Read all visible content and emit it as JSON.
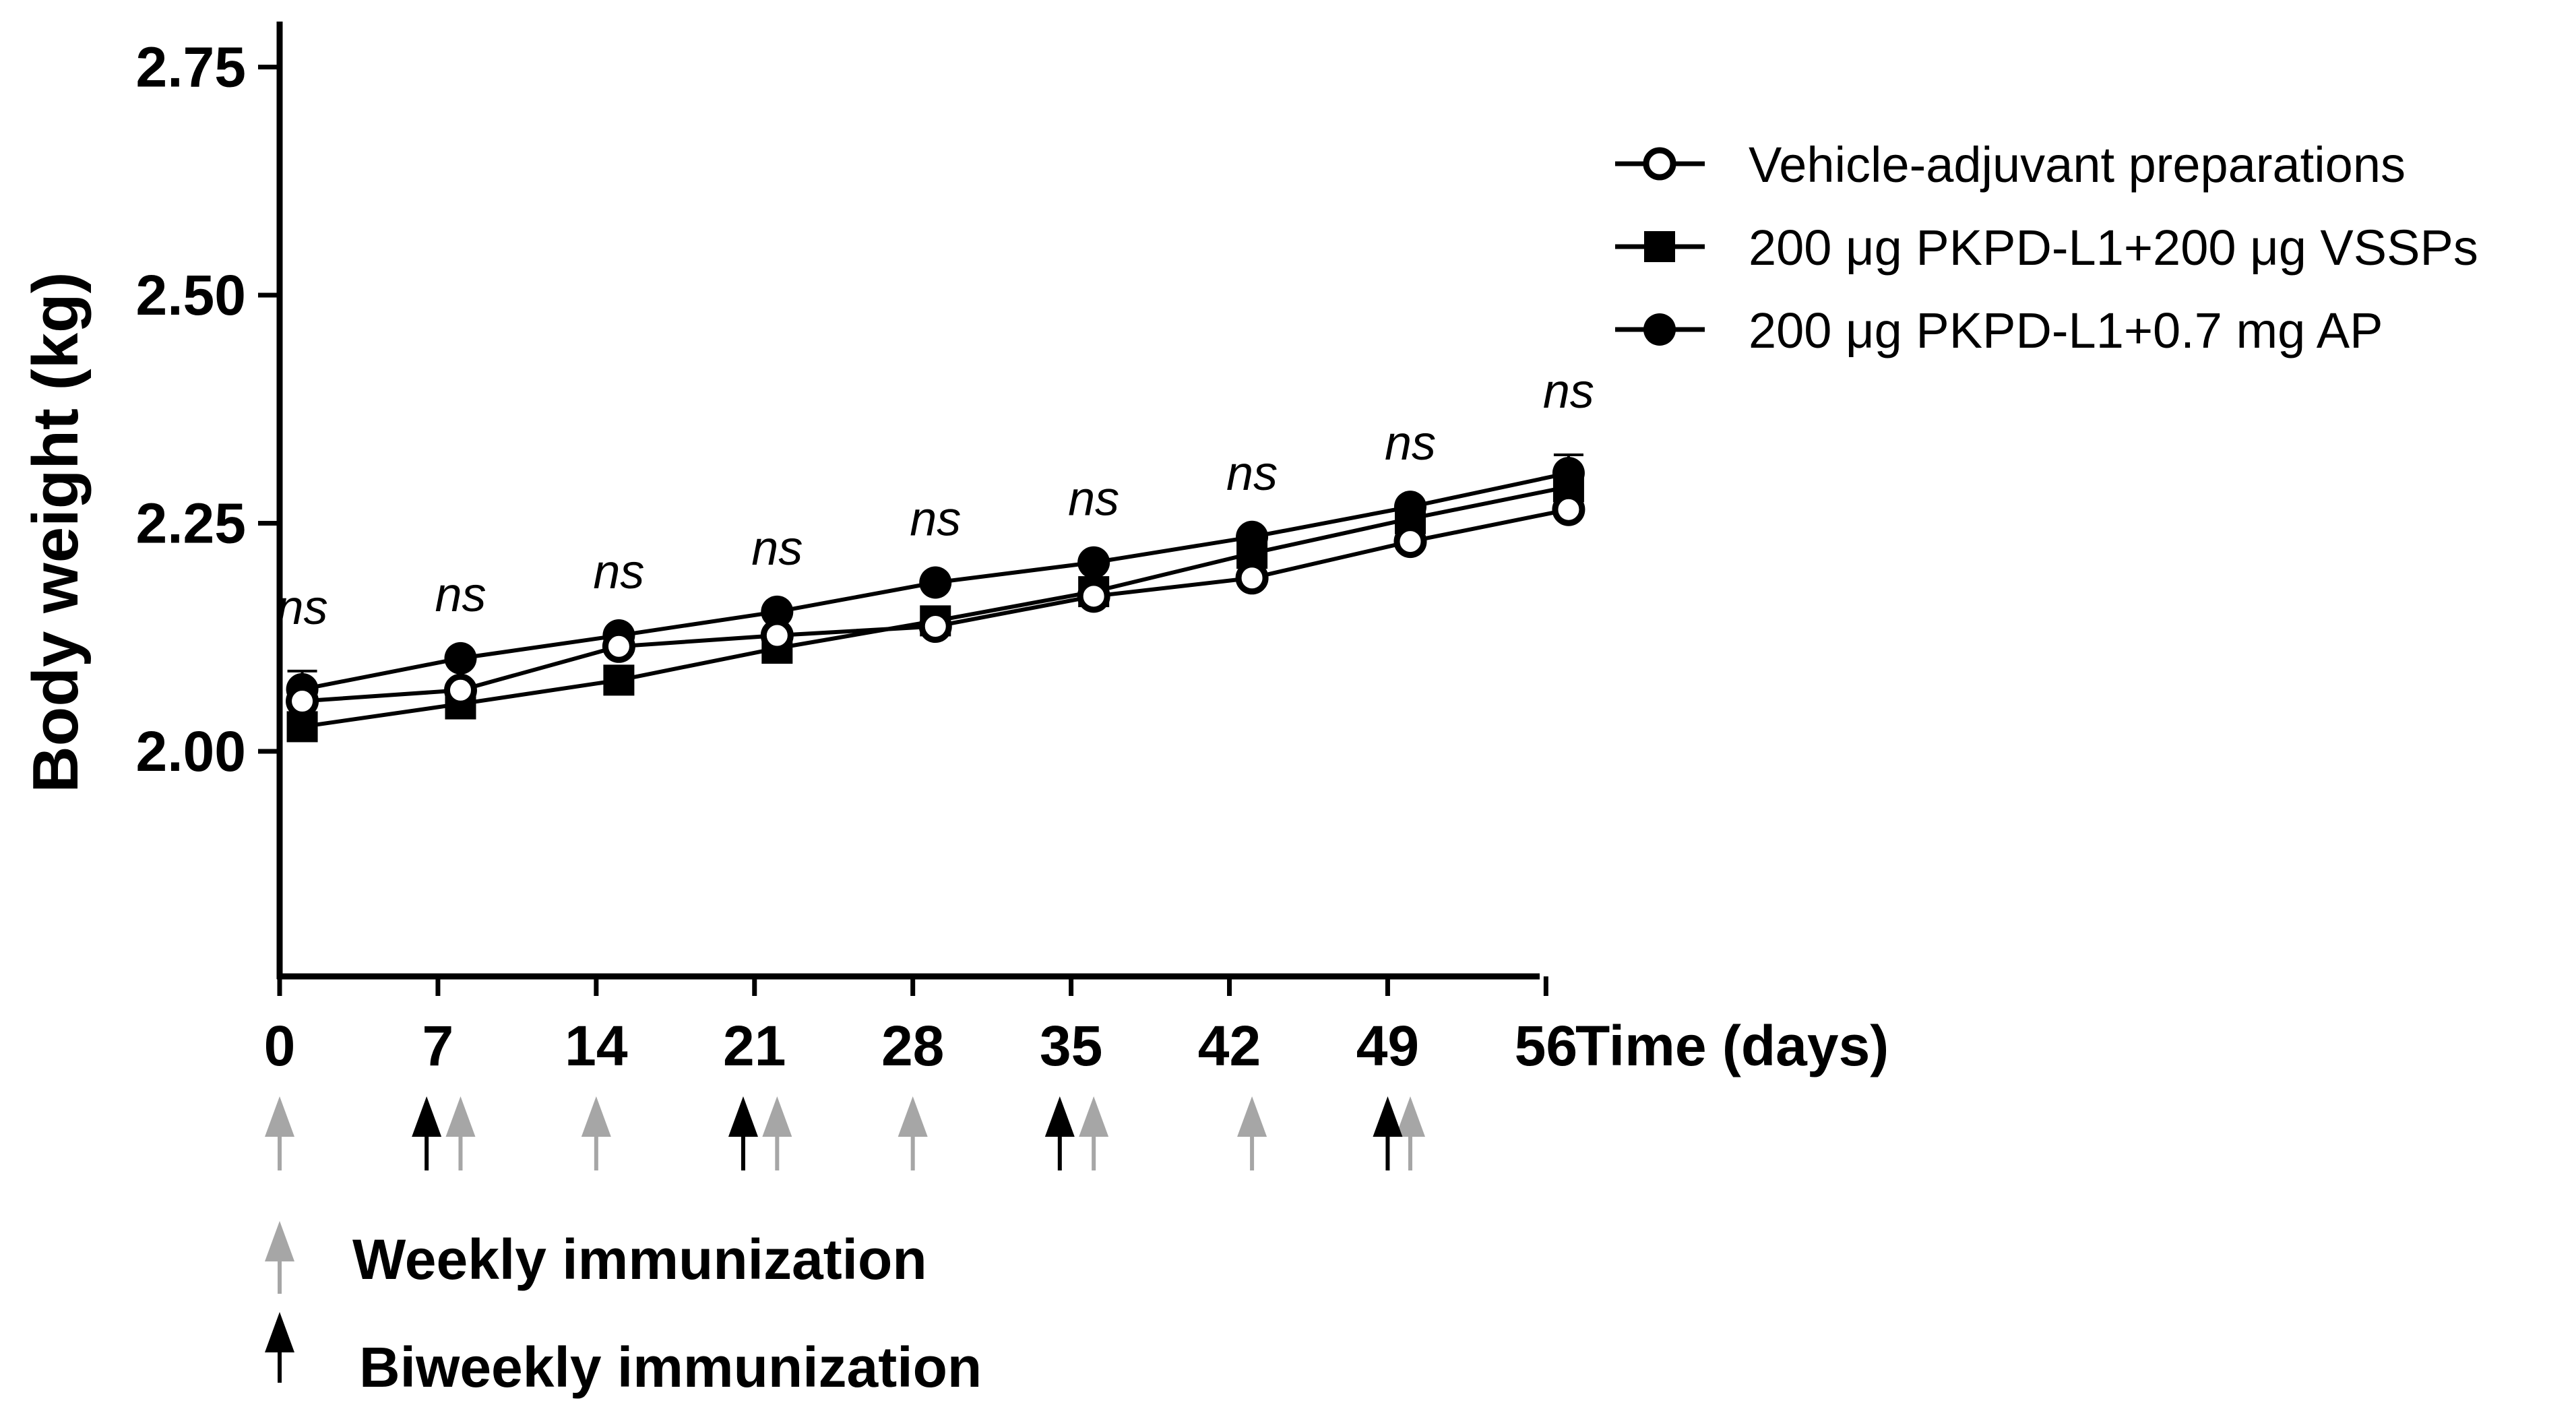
{
  "chart_data": {
    "type": "line",
    "title": "",
    "xlabel": "Time (days)",
    "ylabel": "Body weight (kg)",
    "xlim": [
      0,
      57
    ],
    "ylim": [
      1.75,
      2.8
    ],
    "x_ticks": [
      "0",
      "7",
      "14",
      "21",
      "28",
      "35",
      "42",
      "49",
      "56"
    ],
    "y_ticks": [
      "2.00",
      "2.25",
      "2.50",
      "2.75"
    ],
    "grid": false,
    "legend_position": "top-right",
    "series": [
      {
        "name": "Vehicle-adjuvant preparations",
        "marker": "open-circle",
        "x": [
          1,
          8,
          15,
          22,
          29,
          36,
          43,
          50,
          57
        ],
        "values": [
          2.055,
          2.067,
          2.115,
          2.127,
          2.137,
          2.17,
          2.19,
          2.23,
          2.265
        ],
        "error": [
          0.01,
          0.0,
          0.0,
          0.0,
          0.0,
          0.0,
          0.0,
          0.0,
          0.0
        ]
      },
      {
        "name": "200 μg PKPD-L1+200 μg VSSPs",
        "marker": "filled-square",
        "x": [
          1,
          8,
          15,
          22,
          29,
          36,
          43,
          50,
          57
        ],
        "values": [
          2.027,
          2.052,
          2.078,
          2.113,
          2.143,
          2.175,
          2.217,
          2.255,
          2.29
        ],
        "error": [
          0.0,
          0.0,
          0.0,
          0.0,
          0.0,
          0.0,
          0.0,
          0.0,
          0.0
        ]
      },
      {
        "name": "200 μg PKPD-L1+0.7 mg AP",
        "marker": "filled-circle",
        "x": [
          1,
          8,
          15,
          22,
          29,
          36,
          43,
          50,
          57
        ],
        "values": [
          2.068,
          2.102,
          2.127,
          2.153,
          2.185,
          2.207,
          2.235,
          2.268,
          2.305
        ],
        "error": [
          0.02,
          0.0,
          0.0,
          0.0,
          0.0,
          0.0,
          0.0,
          0.0,
          0.02
        ]
      }
    ],
    "annotations": [
      {
        "x": 1,
        "text": "ns"
      },
      {
        "x": 8,
        "text": "ns"
      },
      {
        "x": 15,
        "text": "ns"
      },
      {
        "x": 22,
        "text": "ns"
      },
      {
        "x": 29,
        "text": "ns"
      },
      {
        "x": 36,
        "text": "ns"
      },
      {
        "x": 43,
        "text": "ns"
      },
      {
        "x": 50,
        "text": "ns"
      },
      {
        "x": 57,
        "text": "ns"
      }
    ],
    "immunization": {
      "weekly_days": [
        0,
        8,
        14,
        22,
        28,
        36,
        43,
        50
      ],
      "biweekly_days": [
        6.5,
        20.5,
        34.5,
        49
      ],
      "colors": {
        "weekly": "#a6a6a6",
        "biweekly": "#000000"
      },
      "legend": [
        {
          "type": "weekly",
          "label": "Weekly immunization"
        },
        {
          "type": "biweekly",
          "label": "Biweekly immunization"
        }
      ]
    }
  }
}
